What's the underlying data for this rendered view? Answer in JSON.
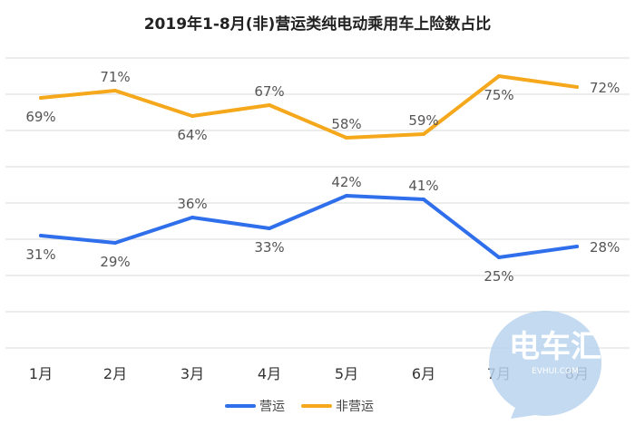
{
  "chart_data": {
    "type": "line",
    "title": "2019年1-8月(非)营运类纯电动乘用车上险数占比",
    "categories": [
      "1月",
      "2月",
      "3月",
      "4月",
      "5月",
      "6月",
      "7月",
      "8月"
    ],
    "series": [
      {
        "name": "营运",
        "color": "#2F6FEB",
        "values": [
          31,
          29,
          36,
          33,
          42,
          41,
          25,
          28
        ],
        "labels": [
          "31%",
          "29%",
          "36%",
          "33%",
          "42%",
          "41%",
          "25%",
          "28%"
        ]
      },
      {
        "name": "非营运",
        "color": "#F5A81C",
        "values": [
          69,
          71,
          64,
          67,
          58,
          59,
          75,
          72
        ],
        "labels": [
          "69%",
          "71%",
          "64%",
          "67%",
          "58%",
          "59%",
          "75%",
          "72%"
        ]
      }
    ],
    "xlabel": "",
    "ylabel": "",
    "ylim": [
      0,
      80
    ],
    "grid": true,
    "legend": "bottom"
  },
  "watermark": {
    "text": "电车汇",
    "url": "EVHUI.COM"
  }
}
